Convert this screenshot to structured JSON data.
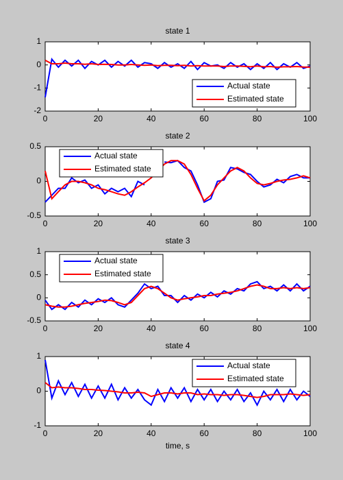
{
  "chart_data": [
    {
      "type": "line",
      "title": "state 1",
      "legend": "southeast",
      "x": [
        0,
        2.5,
        5,
        7.5,
        10,
        12.5,
        15,
        17.5,
        20,
        22.5,
        25,
        27.5,
        30,
        32.5,
        35,
        37.5,
        40,
        42.5,
        45,
        47.5,
        50,
        52.5,
        55,
        57.5,
        60,
        62.5,
        65,
        67.5,
        70,
        72.5,
        75,
        77.5,
        80,
        82.5,
        85,
        87.5,
        90,
        92.5,
        95,
        97.5,
        100
      ],
      "series": [
        {
          "name": "Actual state",
          "color": "#0000ff",
          "values": [
            -1.4,
            0.25,
            -0.1,
            0.2,
            -0.05,
            0.2,
            -0.15,
            0.15,
            0.0,
            0.2,
            -0.1,
            0.15,
            -0.05,
            0.2,
            -0.1,
            0.1,
            0.05,
            -0.15,
            0.1,
            -0.1,
            0.05,
            -0.15,
            0.15,
            -0.2,
            0.1,
            -0.05,
            0.0,
            -0.15,
            0.1,
            -0.1,
            0.05,
            -0.2,
            0.05,
            -0.15,
            0.1,
            -0.2,
            0.05,
            -0.1,
            0.1,
            -0.15,
            -0.05
          ]
        },
        {
          "name": "Estimated state",
          "color": "#ff0000",
          "values": [
            0.2,
            0.05,
            0.05,
            0.08,
            0.05,
            0.05,
            0.03,
            0.05,
            0.02,
            0.03,
            0.02,
            0.0,
            0.0,
            0.02,
            0,
            -0.02,
            0,
            -0.03,
            -0.02,
            -0.02,
            -0.03,
            -0.02,
            -0.05,
            -0.03,
            -0.05,
            -0.05,
            -0.05,
            -0.07,
            -0.05,
            -0.05,
            -0.06,
            -0.08,
            -0.05,
            -0.08,
            -0.07,
            -0.1,
            -0.08,
            -0.08,
            -0.07,
            -0.09,
            -0.1
          ]
        }
      ],
      "xlim": [
        0,
        100
      ],
      "xticks": [
        0,
        20,
        40,
        60,
        80,
        100
      ],
      "ylim": [
        -2,
        1
      ],
      "yticks": [
        -2,
        -1,
        0,
        1
      ]
    },
    {
      "type": "line",
      "title": "state 2",
      "legend": "northwest",
      "x": [
        0,
        2.5,
        5,
        7.5,
        10,
        12.5,
        15,
        17.5,
        20,
        22.5,
        25,
        27.5,
        30,
        32.5,
        35,
        37.5,
        40,
        42.5,
        45,
        47.5,
        50,
        52.5,
        55,
        57.5,
        60,
        62.5,
        65,
        67.5,
        70,
        72.5,
        75,
        77.5,
        80,
        82.5,
        85,
        87.5,
        90,
        92.5,
        95,
        97.5,
        100
      ],
      "series": [
        {
          "name": "Actual state",
          "color": "#0000ff",
          "values": [
            -0.3,
            -0.2,
            -0.1,
            -0.1,
            0.05,
            -0.02,
            0.02,
            -0.1,
            -0.05,
            -0.18,
            -0.1,
            -0.15,
            -0.1,
            -0.22,
            0.0,
            -0.05,
            null,
            null,
            0.28,
            0.27,
            0.3,
            0.2,
            0.15,
            -0.05,
            -0.3,
            -0.25,
            0.0,
            0.02,
            0.2,
            0.18,
            0.13,
            0.1,
            0.0,
            -0.08,
            -0.05,
            0.03,
            -0.02,
            0.07,
            0.1,
            0.05,
            0.05
          ]
        },
        {
          "name": "Estimated state",
          "color": "#ff0000",
          "values": [
            0.15,
            -0.25,
            -0.15,
            -0.05,
            0.0,
            0.0,
            -0.02,
            -0.05,
            -0.1,
            -0.12,
            -0.15,
            -0.18,
            -0.2,
            -0.15,
            -0.08,
            -0.02,
            0.05,
            0.15,
            0.25,
            0.3,
            0.3,
            0.25,
            0.1,
            -0.1,
            -0.28,
            -0.2,
            -0.05,
            0.05,
            0.15,
            0.2,
            0.15,
            0.05,
            -0.03,
            -0.05,
            -0.03,
            0.0,
            0.02,
            0.03,
            0.05,
            0.08,
            0.05
          ]
        }
      ],
      "xlim": [
        0,
        100
      ],
      "xticks": [
        0,
        20,
        40,
        60,
        80,
        100
      ],
      "ylim": [
        -0.5,
        0.5
      ],
      "yticks": [
        -0.5,
        0,
        0.5
      ]
    },
    {
      "type": "line",
      "title": "state 3",
      "legend": "northwest",
      "x": [
        0,
        2.5,
        5,
        7.5,
        10,
        12.5,
        15,
        17.5,
        20,
        22.5,
        25,
        27.5,
        30,
        32.5,
        35,
        37.5,
        40,
        42.5,
        45,
        47.5,
        50,
        52.5,
        55,
        57.5,
        60,
        62.5,
        65,
        67.5,
        70,
        72.5,
        75,
        77.5,
        80,
        82.5,
        85,
        87.5,
        90,
        92.5,
        95,
        97.5,
        100
      ],
      "series": [
        {
          "name": "Actual state",
          "color": "#0000ff",
          "values": [
            -0.05,
            -0.25,
            -0.15,
            -0.25,
            -0.1,
            -0.2,
            -0.05,
            -0.15,
            -0.02,
            -0.1,
            0.0,
            -0.15,
            -0.2,
            -0.05,
            0.1,
            0.3,
            0.2,
            0.25,
            0.05,
            0.05,
            -0.1,
            0.05,
            -0.05,
            0.08,
            0.0,
            0.12,
            0.02,
            0.15,
            0.08,
            0.2,
            0.15,
            0.3,
            0.35,
            0.2,
            0.25,
            0.15,
            0.28,
            0.15,
            0.3,
            0.15,
            0.25
          ]
        },
        {
          "name": "Estimated state",
          "color": "#ff0000",
          "values": [
            -0.15,
            -0.18,
            -0.2,
            -0.2,
            -0.18,
            -0.15,
            -0.12,
            -0.1,
            -0.08,
            -0.05,
            -0.06,
            -0.1,
            -0.15,
            -0.1,
            0.05,
            0.2,
            0.25,
            0.2,
            0.1,
            0.0,
            -0.05,
            -0.02,
            0.0,
            0.02,
            0.05,
            0.05,
            0.08,
            0.1,
            0.12,
            0.15,
            0.2,
            0.25,
            0.28,
            0.25,
            0.2,
            0.2,
            0.22,
            0.2,
            0.22,
            0.2,
            0.22
          ]
        }
      ],
      "xlim": [
        0,
        100
      ],
      "xticks": [
        0,
        20,
        40,
        60,
        80,
        100
      ],
      "ylim": [
        -0.5,
        1
      ],
      "yticks": [
        -0.5,
        0,
        0.5,
        1
      ]
    },
    {
      "type": "line",
      "title": "state 4",
      "legend": "northeast",
      "xlabel": "time, s",
      "x": [
        0,
        2.5,
        5,
        7.5,
        10,
        12.5,
        15,
        17.5,
        20,
        22.5,
        25,
        27.5,
        30,
        32.5,
        35,
        37.5,
        40,
        42.5,
        45,
        47.5,
        50,
        52.5,
        55,
        57.5,
        60,
        62.5,
        65,
        67.5,
        70,
        72.5,
        75,
        77.5,
        80,
        82.5,
        85,
        87.5,
        90,
        92.5,
        95,
        97.5,
        100
      ],
      "series": [
        {
          "name": "Actual state",
          "color": "#0000ff",
          "values": [
            0.9,
            -0.2,
            0.3,
            -0.1,
            0.25,
            -0.15,
            0.2,
            -0.2,
            0.15,
            -0.2,
            0.2,
            -0.25,
            0.1,
            -0.2,
            0.05,
            -0.25,
            -0.4,
            0.05,
            -0.3,
            0.1,
            -0.2,
            0.1,
            -0.3,
            0.05,
            -0.25,
            0.05,
            -0.3,
            0.0,
            -0.25,
            0.05,
            -0.3,
            -0.05,
            -0.4,
            0.0,
            -0.25,
            0.05,
            -0.3,
            0.05,
            -0.25,
            0.0,
            -0.15
          ]
        },
        {
          "name": "Estimated state",
          "color": "#ff0000",
          "values": [
            0.25,
            0.1,
            0.12,
            0.1,
            0.1,
            0.08,
            0.05,
            0.05,
            0.03,
            0.02,
            0.0,
            -0.02,
            -0.05,
            -0.05,
            -0.03,
            -0.05,
            -0.15,
            -0.1,
            -0.05,
            -0.05,
            -0.08,
            -0.05,
            -0.05,
            -0.1,
            -0.08,
            -0.1,
            -0.1,
            -0.12,
            -0.1,
            -0.1,
            -0.12,
            -0.15,
            -0.18,
            -0.15,
            -0.1,
            -0.1,
            -0.1,
            -0.08,
            -0.1,
            -0.12,
            -0.1
          ]
        }
      ],
      "xlim": [
        0,
        100
      ],
      "xticks": [
        0,
        20,
        40,
        60,
        80,
        100
      ],
      "ylim": [
        -1,
        1
      ],
      "yticks": [
        -1,
        0,
        1
      ]
    }
  ]
}
